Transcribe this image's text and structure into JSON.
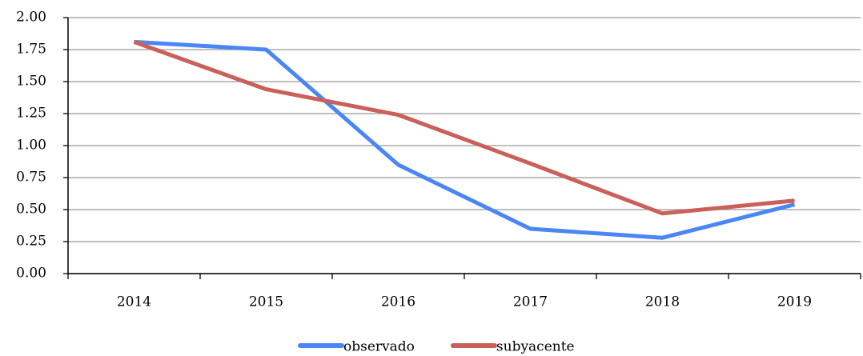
{
  "chart_data": {
    "type": "line",
    "categories": [
      "2014",
      "2015",
      "2016",
      "2017",
      "2018",
      "2019"
    ],
    "series": [
      {
        "name": "observado",
        "color": "#4a86f5",
        "values": [
          1.81,
          1.75,
          0.85,
          0.35,
          0.28,
          0.54
        ]
      },
      {
        "name": "subyacente",
        "color": "#c9605a",
        "values": [
          1.81,
          1.44,
          1.24,
          0.86,
          0.47,
          0.57
        ]
      }
    ],
    "ylim": [
      0,
      2
    ],
    "yticks": [
      {
        "value": 0,
        "label": "0.00"
      },
      {
        "value": 0.25,
        "label": "0.25"
      },
      {
        "value": 0.5,
        "label": "0.50"
      },
      {
        "value": 0.75,
        "label": "0.75"
      },
      {
        "value": 1,
        "label": "1.00"
      },
      {
        "value": 1.25,
        "label": "1.25"
      },
      {
        "value": 1.5,
        "label": "1.50"
      },
      {
        "value": 1.75,
        "label": "1.75"
      },
      {
        "value": 2,
        "label": "2.00"
      }
    ],
    "grid": true,
    "legend": "bottom"
  }
}
